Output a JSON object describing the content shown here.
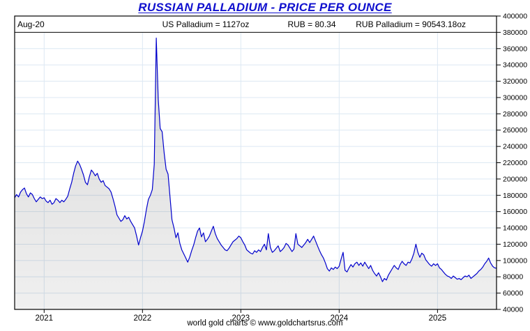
{
  "title": "RUSSIAN PALLADIUM - PRICE PER OUNCE",
  "header": {
    "date_label": "Aug-20",
    "us_palladium": "US Palladium = 1127oz",
    "rub_rate": "RUB = 80.34",
    "rub_palladium": "RUB Palladium = 90543.18oz"
  },
  "footer": "world gold charts © www.goldchartsrus.com",
  "colors": {
    "title_blue": "#1010CE",
    "line_blue": "#0000CC",
    "grid_blue": "#dce8f3",
    "frame_black": "#000000",
    "fill_gray_top_alpha": 0.15,
    "fill_gray_bottom_alpha": 0.06
  },
  "chart_data": {
    "type": "area",
    "title": "RUSSIAN PALLADIUM - PRICE PER OUNCE",
    "xlabel": "",
    "ylabel": "",
    "legend_position": "none",
    "grid": true,
    "xlim": [
      2020.7,
      2025.6
    ],
    "ylim": [
      40000,
      400000
    ],
    "x_ticks": [
      2021,
      2022,
      2023,
      2024,
      2025
    ],
    "y_ticks": [
      400000,
      380000,
      360000,
      340000,
      320000,
      300000,
      280000,
      260000,
      240000,
      220000,
      200000,
      180000,
      160000,
      140000,
      120000,
      100000,
      80000,
      60000,
      40000
    ],
    "header_band_level": 380000,
    "series": [
      {
        "name": "RUB Palladium price per ounce",
        "start_t": 2020.7,
        "step_t": 0.02,
        "values": [
          177000,
          181000,
          178000,
          184000,
          187000,
          189000,
          182000,
          178000,
          183000,
          181000,
          176000,
          172000,
          175000,
          178000,
          176000,
          177000,
          173000,
          171000,
          174000,
          169000,
          171000,
          176000,
          174000,
          171000,
          174000,
          172000,
          175000,
          179000,
          188000,
          196000,
          207000,
          216000,
          222000,
          218000,
          212000,
          205000,
          196000,
          193000,
          203000,
          211000,
          208000,
          204000,
          207000,
          200000,
          196000,
          198000,
          192000,
          190000,
          188000,
          184000,
          176000,
          167000,
          156000,
          152000,
          148000,
          150000,
          155000,
          151000,
          153000,
          148000,
          144000,
          140000,
          130000,
          119000,
          128000,
          136000,
          148000,
          163000,
          175000,
          180000,
          187000,
          218000,
          373000,
          298000,
          262000,
          258000,
          232000,
          212000,
          206000,
          178000,
          150000,
          140000,
          128000,
          134000,
          121000,
          113000,
          108000,
          103000,
          98000,
          104000,
          112000,
          119000,
          128000,
          136000,
          140000,
          129000,
          134000,
          123000,
          126000,
          130000,
          136000,
          142000,
          133000,
          127000,
          123000,
          119000,
          116000,
          113000,
          112000,
          115000,
          119000,
          123000,
          125000,
          127000,
          130000,
          128000,
          123000,
          119000,
          113000,
          111000,
          109000,
          108000,
          112000,
          110000,
          113000,
          111000,
          116000,
          120000,
          113000,
          133000,
          116000,
          110000,
          112000,
          115000,
          118000,
          111000,
          113000,
          116000,
          121000,
          119000,
          115000,
          111000,
          114000,
          133000,
          120000,
          118000,
          116000,
          119000,
          122000,
          126000,
          122000,
          126000,
          130000,
          124000,
          118000,
          112000,
          107000,
          103000,
          97000,
          90000,
          87000,
          91000,
          89000,
          92000,
          90000,
          93000,
          102000,
          110000,
          88000,
          86000,
          91000,
          95000,
          92000,
          96000,
          98000,
          94000,
          97000,
          93000,
          98000,
          94000,
          90000,
          94000,
          88000,
          84000,
          81000,
          85000,
          80000,
          74000,
          78000,
          76000,
          82000,
          86000,
          90000,
          94000,
          91000,
          89000,
          95000,
          99000,
          96000,
          94000,
          98000,
          97000,
          102000,
          109000,
          120000,
          110000,
          104000,
          109000,
          107000,
          101000,
          98000,
          95000,
          93000,
          96000,
          94000,
          96000,
          91000,
          89000,
          86000,
          83000,
          81000,
          80000,
          78000,
          81000,
          79000,
          77000,
          78000,
          76500,
          79000,
          81000,
          80000,
          82000,
          78000,
          80000,
          82000,
          84000,
          87000,
          89000,
          92000,
          96000,
          99000,
          103000,
          97000,
          93000,
          91000,
          90543
        ]
      }
    ]
  }
}
